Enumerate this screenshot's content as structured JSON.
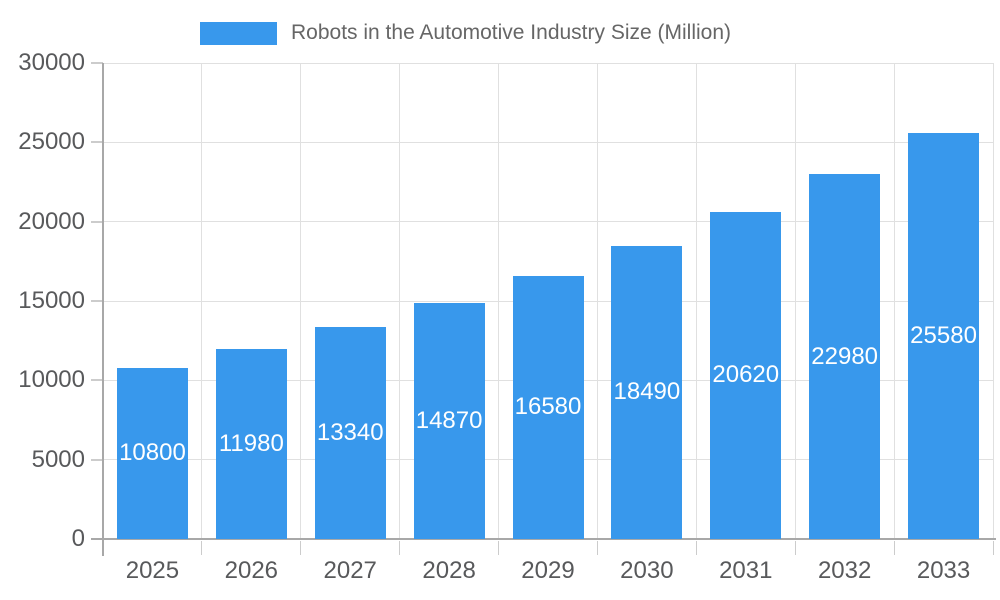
{
  "legend": {
    "label": "Robots in the Automotive Industry Size (Million)"
  },
  "chart_data": {
    "type": "bar",
    "title": "Robots in the Automotive Industry Size (Million)",
    "categories": [
      "2025",
      "2026",
      "2027",
      "2028",
      "2029",
      "2030",
      "2031",
      "2032",
      "2033"
    ],
    "values": [
      10800,
      11980,
      13340,
      14870,
      16580,
      18490,
      20620,
      22980,
      25580
    ],
    "xlabel": "",
    "ylabel": "",
    "ylim": [
      0,
      30000
    ],
    "yticks": [
      0,
      5000,
      10000,
      15000,
      20000,
      25000,
      30000
    ],
    "grid": true,
    "legend_position": "top",
    "value_labels": "inside-center-white",
    "colors": {
      "bar": "#3898ec",
      "value_label": "#ffffff",
      "axis_text": "#58595b",
      "legend_text": "#666666",
      "gridline": "#e0e0e0",
      "axis_line": "#a8a8a8",
      "tick": "#cccccc",
      "background": "#ffffff"
    }
  }
}
